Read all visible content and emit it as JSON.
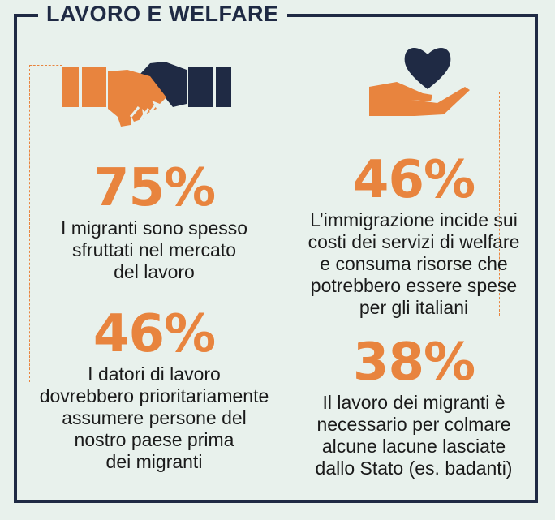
{
  "title": "LAVORO E WELFARE",
  "icons": {
    "left": "handshake-icon",
    "right": "heart-in-hand-icon"
  },
  "colors": {
    "background": "#e8f1ec",
    "frame": "#1f2a44",
    "accent": "#e8843e",
    "text": "#1a1a1a"
  },
  "stats": [
    {
      "value": "75%",
      "lines": [
        "I migranti sono spesso",
        "sfruttati nel mercato",
        "del lavoro"
      ]
    },
    {
      "value": "46%",
      "lines": [
        "I datori di lavoro",
        "dovrebbero prioritariamente",
        "assumere persone del",
        "nostro paese prima",
        "dei migranti"
      ]
    },
    {
      "value": "46%",
      "lines": [
        "L’immigrazione incide sui",
        "costi dei servizi di welfare",
        "e consuma risorse che",
        "potrebbero essere spese",
        "per gli italiani"
      ]
    },
    {
      "value": "38%",
      "lines": [
        "Il lavoro dei migranti è",
        "necessario per colmare",
        "alcune lacune lasciate",
        "dallo Stato (es. badanti)"
      ]
    }
  ]
}
